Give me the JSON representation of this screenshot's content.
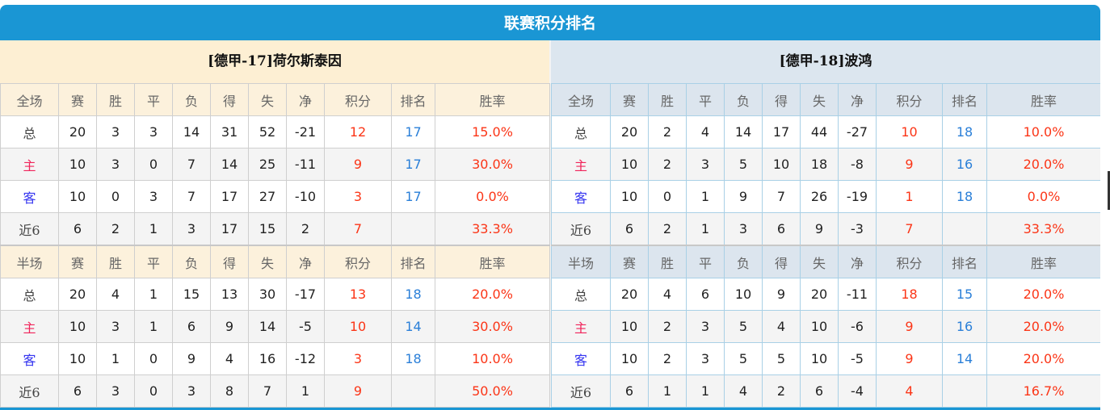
{
  "title": "联赛积分排名",
  "columns_full": [
    "全场",
    "赛",
    "胜",
    "平",
    "负",
    "得",
    "失",
    "净",
    "积分",
    "排名",
    "胜率"
  ],
  "columns_half": [
    "半场",
    "赛",
    "胜",
    "平",
    "负",
    "得",
    "失",
    "净",
    "积分",
    "排名",
    "胜率"
  ],
  "colors": {
    "header_blue": "#1a96d4",
    "points": "#fb3517",
    "rank": "#2a7fd8",
    "home": "#f0245a",
    "away": "#3434f0"
  },
  "teams": [
    {
      "name": "[德甲-17]荷尔斯泰因",
      "full": [
        [
          "总",
          "20",
          "3",
          "3",
          "14",
          "31",
          "52",
          "-21",
          "12",
          "17",
          "15.0%"
        ],
        [
          "主",
          "10",
          "3",
          "0",
          "7",
          "14",
          "25",
          "-11",
          "9",
          "17",
          "30.0%"
        ],
        [
          "客",
          "10",
          "0",
          "3",
          "7",
          "17",
          "27",
          "-10",
          "3",
          "17",
          "0.0%"
        ],
        [
          "近6",
          "6",
          "2",
          "1",
          "3",
          "17",
          "15",
          "2",
          "7",
          "",
          "33.3%"
        ]
      ],
      "half": [
        [
          "总",
          "20",
          "4",
          "1",
          "15",
          "13",
          "30",
          "-17",
          "13",
          "18",
          "20.0%"
        ],
        [
          "主",
          "10",
          "3",
          "1",
          "6",
          "9",
          "14",
          "-5",
          "10",
          "14",
          "30.0%"
        ],
        [
          "客",
          "10",
          "1",
          "0",
          "9",
          "4",
          "16",
          "-12",
          "3",
          "18",
          "10.0%"
        ],
        [
          "近6",
          "6",
          "3",
          "0",
          "3",
          "8",
          "7",
          "1",
          "9",
          "",
          "50.0%"
        ]
      ]
    },
    {
      "name": "[德甲-18]波鸿",
      "full": [
        [
          "总",
          "20",
          "2",
          "4",
          "14",
          "17",
          "44",
          "-27",
          "10",
          "18",
          "10.0%"
        ],
        [
          "主",
          "10",
          "2",
          "3",
          "5",
          "10",
          "18",
          "-8",
          "9",
          "16",
          "20.0%"
        ],
        [
          "客",
          "10",
          "0",
          "1",
          "9",
          "7",
          "26",
          "-19",
          "1",
          "18",
          "0.0%"
        ],
        [
          "近6",
          "6",
          "2",
          "1",
          "3",
          "6",
          "9",
          "-3",
          "7",
          "",
          "33.3%"
        ]
      ],
      "half": [
        [
          "总",
          "20",
          "4",
          "6",
          "10",
          "9",
          "20",
          "-11",
          "18",
          "15",
          "20.0%"
        ],
        [
          "主",
          "10",
          "2",
          "3",
          "5",
          "4",
          "10",
          "-6",
          "9",
          "16",
          "20.0%"
        ],
        [
          "客",
          "10",
          "2",
          "3",
          "5",
          "5",
          "10",
          "-5",
          "9",
          "14",
          "20.0%"
        ],
        [
          "近6",
          "6",
          "1",
          "1",
          "4",
          "2",
          "6",
          "-4",
          "4",
          "",
          "16.7%"
        ]
      ]
    }
  ]
}
